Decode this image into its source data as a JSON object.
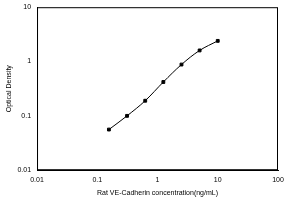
{
  "chart_data": {
    "type": "scatter",
    "x_label": "Rat VE-Cadherin concentration(ng/mL)",
    "y_label": "Optical Density",
    "x": [
      0.156,
      0.312,
      0.625,
      1.25,
      2.5,
      5,
      10
    ],
    "values": [
      0.056,
      0.1,
      0.19,
      0.42,
      0.88,
      1.6,
      2.4
    ],
    "color": "#000000",
    "marker": "square",
    "line_style": "solid",
    "log": true,
    "grid": false,
    "xlim": [
      0.01,
      100
    ],
    "xticks": [
      0.01,
      0.1,
      1,
      10,
      100
    ],
    "ylim": [
      0.01,
      10
    ],
    "yticks": [
      0.01,
      0.1,
      1,
      10
    ]
  }
}
